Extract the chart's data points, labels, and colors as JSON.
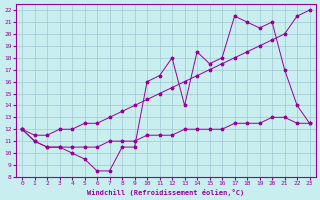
{
  "xlabel": "Windchill (Refroidissement éolien,°C)",
  "bg_color": "#c8eef0",
  "line_color": "#990099",
  "grid_color": "#a0c8d0",
  "xlim": [
    -0.5,
    23.5
  ],
  "ylim": [
    8,
    22.5
  ],
  "xticks": [
    0,
    1,
    2,
    3,
    4,
    5,
    6,
    7,
    8,
    9,
    10,
    11,
    12,
    13,
    14,
    15,
    16,
    17,
    18,
    19,
    20,
    21,
    22,
    23
  ],
  "yticks": [
    8,
    9,
    10,
    11,
    12,
    13,
    14,
    15,
    16,
    17,
    18,
    19,
    20,
    21,
    22
  ],
  "line1_x": [
    0,
    1,
    2,
    3,
    4,
    5,
    6,
    7,
    8,
    9,
    10,
    11,
    12,
    13,
    14,
    15,
    16,
    17,
    18,
    19,
    20,
    21,
    22,
    23
  ],
  "line1_y": [
    12,
    11,
    10.5,
    10.5,
    10,
    9.5,
    8.5,
    8.5,
    10.5,
    10.5,
    16,
    16.5,
    18,
    14,
    18.5,
    17.5,
    18,
    21.5,
    21,
    20.5,
    21,
    17,
    14,
    12.5
  ],
  "line2_x": [
    0,
    1,
    2,
    3,
    4,
    5,
    6,
    7,
    8,
    9,
    10,
    11,
    12,
    13,
    14,
    15,
    16,
    17,
    18,
    19,
    20,
    21,
    22,
    23
  ],
  "line2_y": [
    12,
    11.5,
    11.5,
    12,
    12,
    12.5,
    12.5,
    13,
    13.5,
    14,
    14.5,
    15,
    15.5,
    16,
    16.5,
    17,
    17.5,
    18,
    18.5,
    19,
    19.5,
    20,
    21.5,
    22
  ],
  "line3_x": [
    0,
    1,
    2,
    3,
    4,
    5,
    6,
    7,
    8,
    9,
    10,
    11,
    12,
    13,
    14,
    15,
    16,
    17,
    18,
    19,
    20,
    21,
    22,
    23
  ],
  "line3_y": [
    12,
    11,
    10.5,
    10.5,
    10.5,
    10.5,
    10.5,
    11,
    11,
    11,
    11.5,
    11.5,
    11.5,
    12,
    12,
    12,
    12,
    12.5,
    12.5,
    12.5,
    13,
    13,
    12.5,
    12.5
  ]
}
